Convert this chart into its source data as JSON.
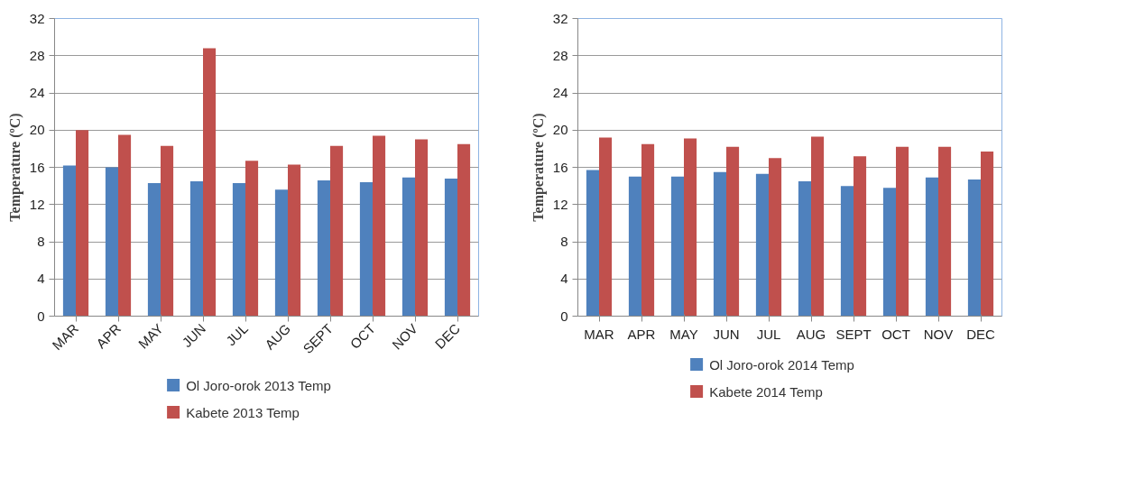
{
  "chart_data": [
    {
      "type": "bar",
      "categories": [
        "MAR",
        "APR",
        "MAY",
        "JUN",
        "JUL",
        "AUG",
        "SEPT",
        "OCT",
        "NOV",
        "DEC"
      ],
      "ylabel": "Temperature (ºC)",
      "ylim": [
        0,
        32
      ],
      "yticks": [
        0,
        4,
        8,
        12,
        16,
        20,
        24,
        28,
        32
      ],
      "grid": "y",
      "legend": "bottom",
      "series": [
        {
          "name": "Ol Joro-orok 2013 Temp",
          "color": "#4f81bd",
          "values": [
            16.2,
            16.0,
            14.3,
            14.5,
            14.3,
            13.6,
            14.6,
            14.4,
            14.9,
            14.8
          ]
        },
        {
          "name": "Kabete 2013 Temp",
          "color": "#c0504d",
          "values": [
            20.0,
            19.5,
            18.3,
            28.8,
            16.7,
            16.3,
            18.3,
            19.4,
            19.0,
            18.5
          ]
        }
      ]
    },
    {
      "type": "bar",
      "categories": [
        "MAR",
        "APR",
        "MAY",
        "JUN",
        "JUL",
        "AUG",
        "SEPT",
        "OCT",
        "NOV",
        "DEC"
      ],
      "ylabel": "Temperature (ºC)",
      "ylim": [
        0,
        32
      ],
      "yticks": [
        0,
        4,
        8,
        12,
        16,
        20,
        24,
        28,
        32
      ],
      "grid": "y",
      "legend": "bottom",
      "series": [
        {
          "name": "Ol Joro-orok 2014 Temp",
          "color": "#4f81bd",
          "values": [
            15.7,
            15.0,
            15.0,
            15.5,
            15.3,
            14.5,
            14.0,
            13.8,
            14.9,
            14.7
          ]
        },
        {
          "name": "Kabete 2014 Temp",
          "color": "#c0504d",
          "values": [
            19.2,
            18.5,
            19.1,
            18.2,
            17.0,
            19.3,
            17.2,
            18.2,
            18.2,
            17.7
          ]
        }
      ]
    }
  ]
}
